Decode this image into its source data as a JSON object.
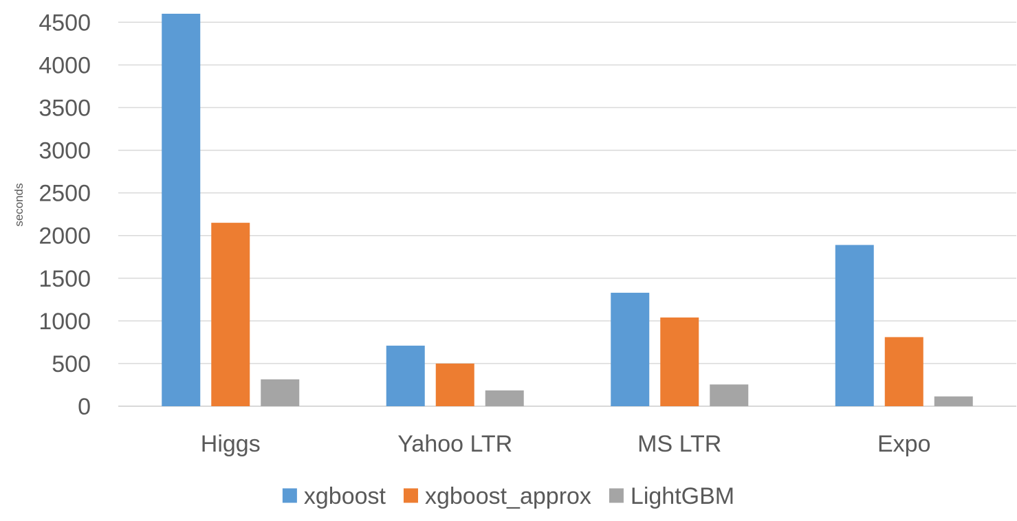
{
  "chart_data": {
    "type": "bar",
    "title": "",
    "xlabel": "",
    "ylabel": "seconds",
    "ylim": [
      0,
      4600
    ],
    "yticks": [
      0,
      500,
      1000,
      1500,
      2000,
      2500,
      3000,
      3500,
      4000,
      4500
    ],
    "ytick_labels": [
      "0",
      "500",
      "1000",
      "1500",
      "2000",
      "2500",
      "3000",
      "3500",
      "4000",
      "4500"
    ],
    "categories": [
      "Higgs",
      "Yahoo LTR",
      "MS LTR",
      "Expo"
    ],
    "series": [
      {
        "name": "xgboost",
        "color": "#5b9bd5",
        "values": [
          4600,
          710,
          1330,
          1890
        ]
      },
      {
        "name": "xgboost_approx",
        "color": "#ed7d31",
        "values": [
          2150,
          500,
          1040,
          810
        ]
      },
      {
        "name": "LightGBM",
        "color": "#a5a5a5",
        "values": [
          315,
          185,
          255,
          115
        ]
      }
    ],
    "grid": true,
    "legend_position": "bottom"
  }
}
